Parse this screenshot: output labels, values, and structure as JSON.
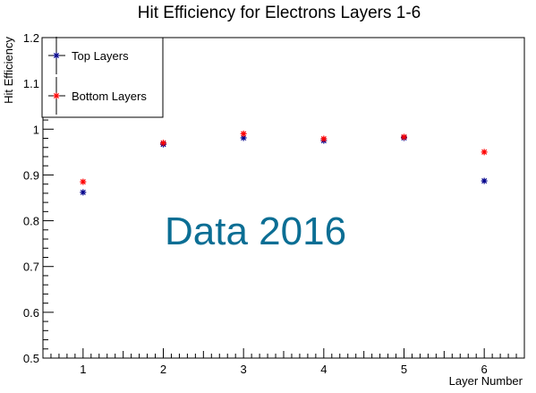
{
  "chart_data": {
    "type": "scatter",
    "title": "Hit Efficiency for Electrons Layers 1-6",
    "xlabel": "Layer Number",
    "ylabel": "Hit Efficiency",
    "xlim": [
      0.5,
      6.5
    ],
    "ylim": [
      0.5,
      1.2
    ],
    "x_ticks": [
      1,
      2,
      3,
      4,
      5,
      6
    ],
    "y_ticks": [
      0.5,
      0.6,
      0.7,
      0.8,
      0.9,
      1.0,
      1.1,
      1.2
    ],
    "x_tick_labels": [
      "1",
      "2",
      "3",
      "4",
      "5",
      "6"
    ],
    "y_tick_labels": [
      "0.5",
      "0.6",
      "0.7",
      "0.8",
      "0.9",
      "1",
      "1.1",
      "1.2"
    ],
    "grid": false,
    "legend_position": "top-left",
    "annotation": "Data 2016",
    "series": [
      {
        "name": "Top Layers",
        "color": "#00008B",
        "x": [
          1,
          2,
          3,
          4,
          5,
          6
        ],
        "y": [
          0.862,
          0.967,
          0.981,
          0.975,
          0.981,
          0.887
        ],
        "yerr": [
          0.004,
          0.004,
          0.004,
          0.004,
          0.004,
          0.004
        ]
      },
      {
        "name": "Bottom Layers",
        "color": "#FF0000",
        "x": [
          1,
          2,
          3,
          4,
          5,
          6
        ],
        "y": [
          0.885,
          0.97,
          0.99,
          0.979,
          0.983,
          0.95
        ],
        "yerr": [
          0.004,
          0.004,
          0.004,
          0.004,
          0.004,
          0.004
        ]
      }
    ],
    "annotation_color": "#0B6E94"
  }
}
